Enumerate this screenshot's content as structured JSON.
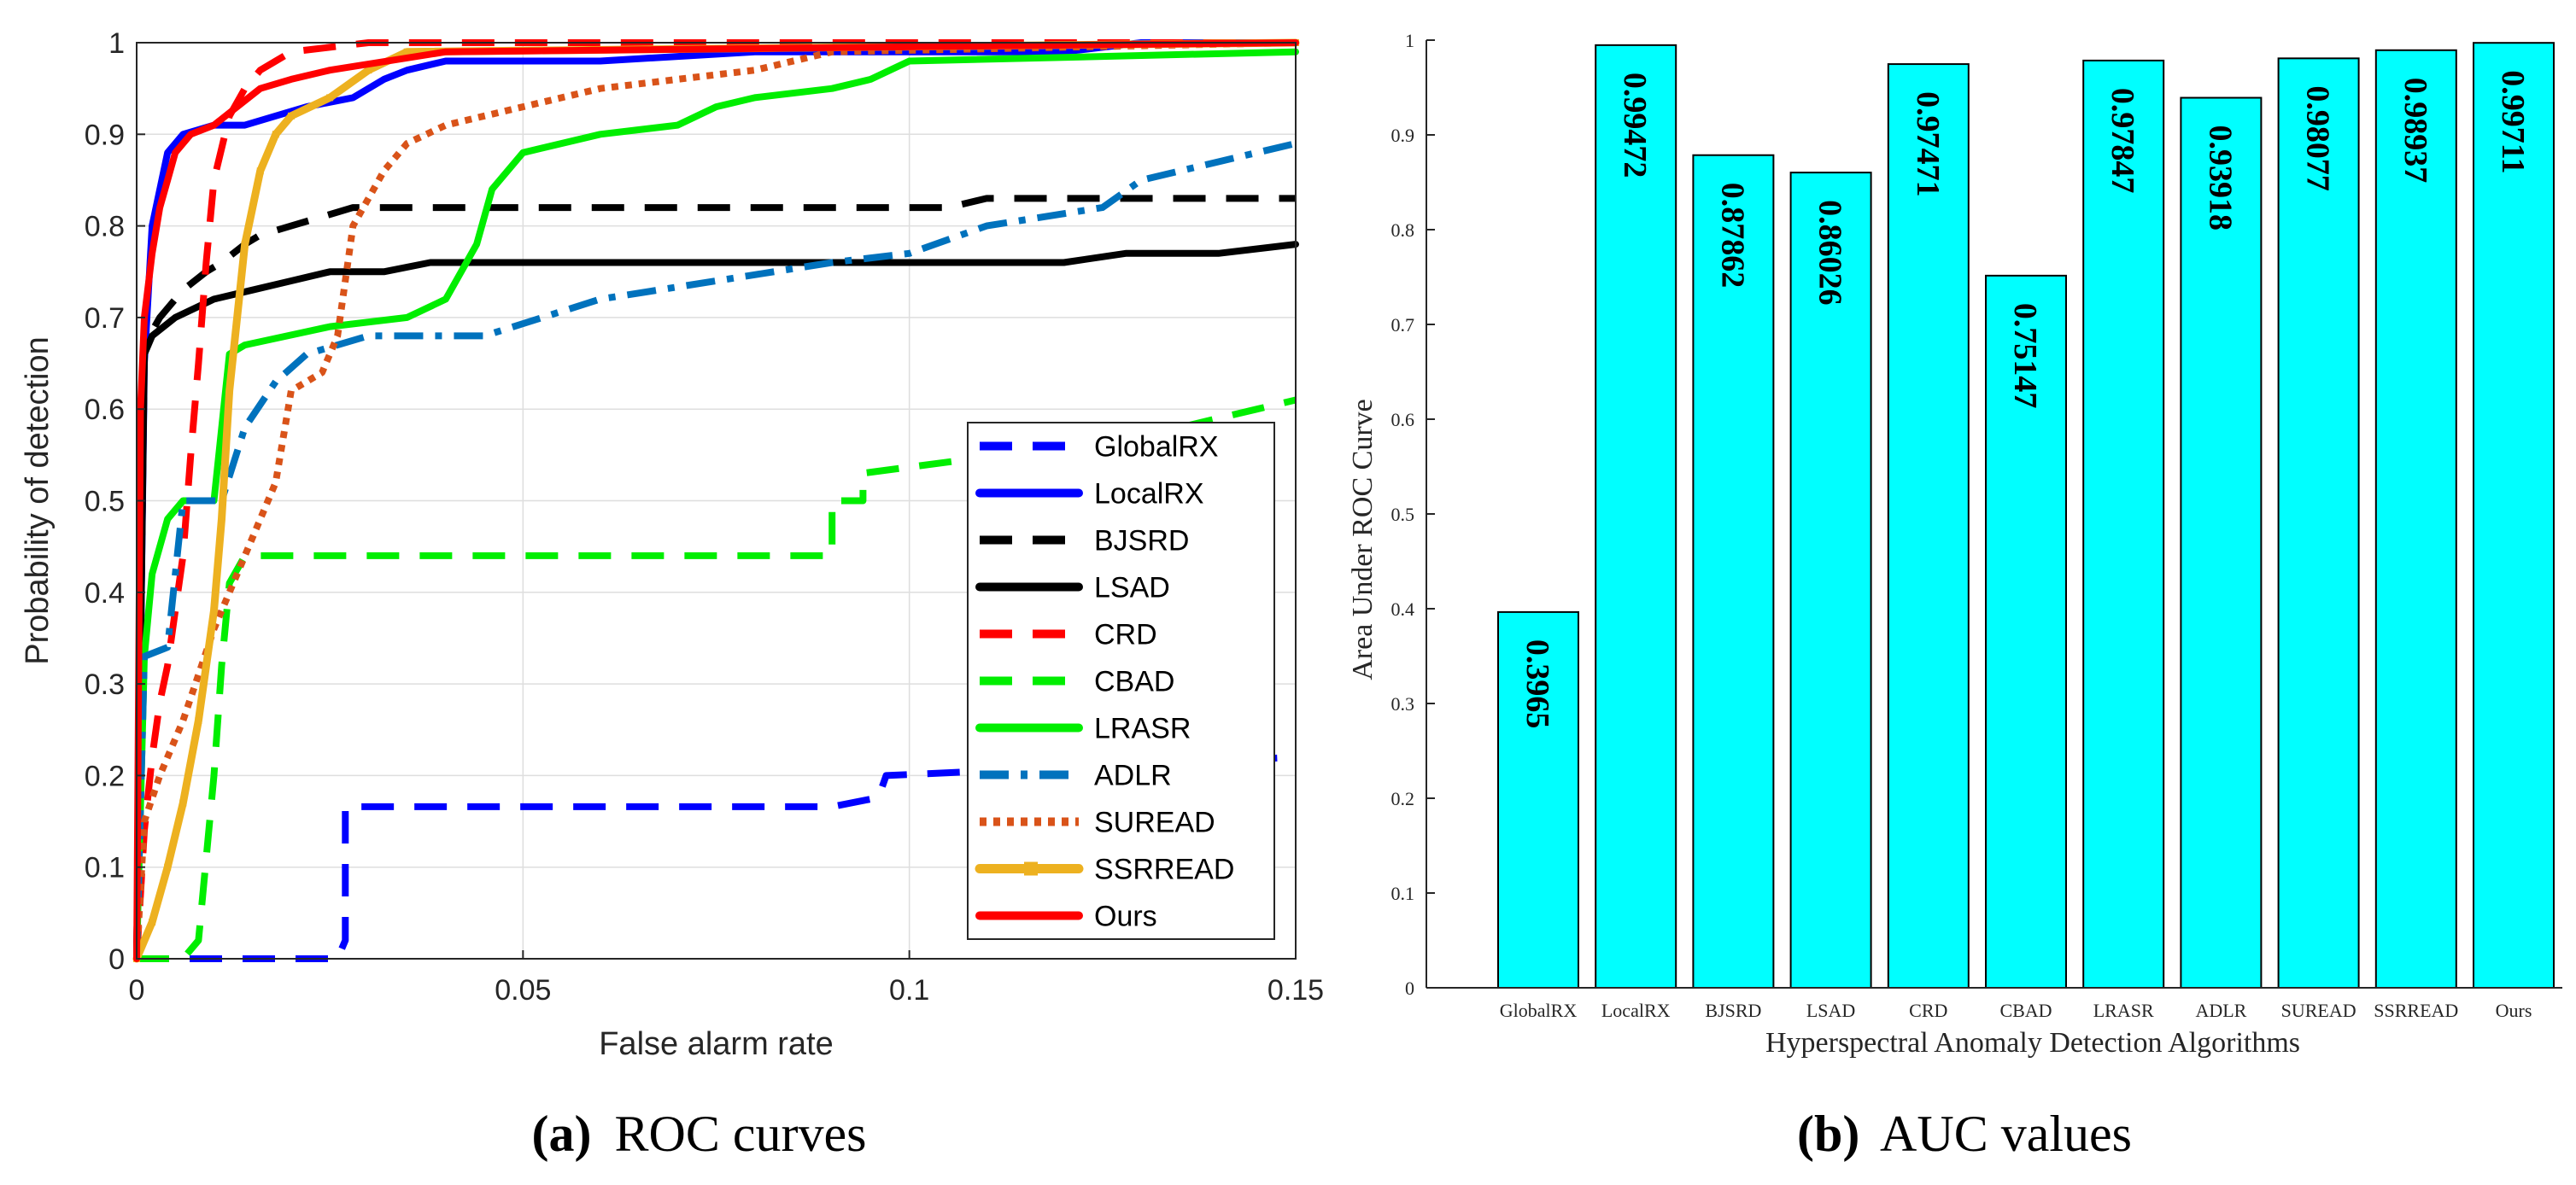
{
  "chart_data": [
    {
      "type": "line",
      "caption_letter": "(a)",
      "caption_text": "ROC curves",
      "xlabel": "False alarm rate",
      "ylabel": "Probability of detection",
      "xlim": [
        0,
        0.15
      ],
      "ylim": [
        0,
        1
      ],
      "xticks": [
        "0",
        "0.05",
        "0.1",
        "0.15"
      ],
      "xtick_values": [
        0,
        0.05,
        0.1,
        0.15
      ],
      "yticks": [
        "0",
        "0.1",
        "0.2",
        "0.3",
        "0.4",
        "0.5",
        "0.6",
        "0.7",
        "0.8",
        "0.9",
        "1"
      ],
      "ytick_values": [
        0,
        0.1,
        0.2,
        0.3,
        0.4,
        0.5,
        0.6,
        0.7,
        0.8,
        0.9,
        1
      ],
      "grid": true,
      "legend_position": "bottom-right",
      "series": [
        {
          "name": "GlobalRX",
          "color": "#0000ff",
          "style": "dash",
          "x": [
            0,
            0.026,
            0.027,
            0.027,
            0.09,
            0.096,
            0.097,
            0.15
          ],
          "y": [
            0,
            0,
            0.02,
            0.166,
            0.166,
            0.176,
            0.2,
            0.22
          ]
        },
        {
          "name": "LocalRX",
          "color": "#0000ff",
          "style": "solid",
          "x": [
            0,
            0.001,
            0.002,
            0.004,
            0.006,
            0.01,
            0.014,
            0.018,
            0.022,
            0.028,
            0.032,
            0.035,
            0.04,
            0.06,
            0.08,
            0.12,
            0.13,
            0.15
          ],
          "y": [
            0,
            0.65,
            0.8,
            0.88,
            0.9,
            0.91,
            0.91,
            0.92,
            0.93,
            0.94,
            0.96,
            0.97,
            0.98,
            0.98,
            0.99,
            0.99,
            1.0,
            1.0
          ]
        },
        {
          "name": "BJSRD",
          "color": "#000000",
          "style": "dash",
          "x": [
            0,
            0.001,
            0.003,
            0.006,
            0.009,
            0.011,
            0.014,
            0.016,
            0.02,
            0.024,
            0.028,
            0.05,
            0.08,
            0.105,
            0.11,
            0.15
          ],
          "y": [
            0,
            0.67,
            0.7,
            0.73,
            0.75,
            0.76,
            0.78,
            0.79,
            0.8,
            0.81,
            0.82,
            0.82,
            0.82,
            0.82,
            0.83,
            0.83
          ]
        },
        {
          "name": "LSAD",
          "color": "#000000",
          "style": "solid",
          "x": [
            0,
            0.001,
            0.002,
            0.005,
            0.01,
            0.015,
            0.02,
            0.025,
            0.032,
            0.038,
            0.06,
            0.08,
            0.1,
            0.12,
            0.128,
            0.14,
            0.15
          ],
          "y": [
            0,
            0.66,
            0.68,
            0.7,
            0.72,
            0.73,
            0.74,
            0.75,
            0.75,
            0.76,
            0.76,
            0.76,
            0.76,
            0.76,
            0.77,
            0.77,
            0.78
          ]
        },
        {
          "name": "CRD",
          "color": "#ff0000",
          "style": "dash",
          "x": [
            0,
            0.001,
            0.002,
            0.003,
            0.004,
            0.005,
            0.006,
            0.007,
            0.008,
            0.009,
            0.01,
            0.012,
            0.014,
            0.016,
            0.018,
            0.02,
            0.03,
            0.15
          ],
          "y": [
            0,
            0.14,
            0.22,
            0.28,
            0.32,
            0.38,
            0.44,
            0.55,
            0.65,
            0.76,
            0.85,
            0.92,
            0.95,
            0.97,
            0.98,
            0.99,
            1.0,
            1.0
          ]
        },
        {
          "name": "CBAD",
          "color": "#00ee00",
          "style": "dash",
          "x": [
            0,
            0.006,
            0.008,
            0.01,
            0.011,
            0.012,
            0.014,
            0.03,
            0.06,
            0.09,
            0.09,
            0.094,
            0.094,
            0.13,
            0.145,
            0.15
          ],
          "y": [
            0,
            0,
            0.02,
            0.2,
            0.32,
            0.41,
            0.44,
            0.44,
            0.44,
            0.44,
            0.5,
            0.5,
            0.53,
            0.57,
            0.6,
            0.61
          ]
        },
        {
          "name": "LRASR",
          "color": "#00ee00",
          "style": "solid",
          "x": [
            0,
            0.001,
            0.002,
            0.004,
            0.006,
            0.01,
            0.012,
            0.014,
            0.025,
            0.035,
            0.04,
            0.044,
            0.046,
            0.05,
            0.06,
            0.07,
            0.075,
            0.08,
            0.09,
            0.095,
            0.1,
            0.15
          ],
          "y": [
            0,
            0.33,
            0.42,
            0.48,
            0.5,
            0.5,
            0.66,
            0.67,
            0.69,
            0.7,
            0.72,
            0.78,
            0.84,
            0.88,
            0.9,
            0.91,
            0.93,
            0.94,
            0.95,
            0.96,
            0.98,
            0.99
          ]
        },
        {
          "name": "ADLR",
          "color": "#0072bd",
          "style": "dashdot",
          "x": [
            0,
            0.001,
            0.004,
            0.006,
            0.011,
            0.014,
            0.018,
            0.022,
            0.03,
            0.045,
            0.06,
            0.075,
            0.09,
            0.1,
            0.11,
            0.125,
            0.13,
            0.14,
            0.15
          ],
          "y": [
            0,
            0.33,
            0.34,
            0.5,
            0.5,
            0.58,
            0.63,
            0.66,
            0.68,
            0.68,
            0.72,
            0.74,
            0.76,
            0.77,
            0.8,
            0.82,
            0.85,
            0.87,
            0.89
          ]
        },
        {
          "name": "SUREAD",
          "color": "#d95319",
          "style": "dot",
          "x": [
            0,
            0.001,
            0.003,
            0.006,
            0.01,
            0.014,
            0.018,
            0.02,
            0.024,
            0.026,
            0.028,
            0.032,
            0.035,
            0.04,
            0.05,
            0.06,
            0.07,
            0.08,
            0.09,
            0.15
          ],
          "y": [
            0,
            0.15,
            0.2,
            0.26,
            0.36,
            0.44,
            0.52,
            0.62,
            0.64,
            0.68,
            0.8,
            0.86,
            0.89,
            0.91,
            0.93,
            0.95,
            0.96,
            0.97,
            0.99,
            1.0
          ]
        },
        {
          "name": "SSRREAD",
          "color": "#edb120",
          "style": "solid-marker",
          "x": [
            0,
            0.002,
            0.004,
            0.006,
            0.008,
            0.01,
            0.011,
            0.012,
            0.014,
            0.016,
            0.018,
            0.02,
            0.025,
            0.03,
            0.035,
            0.15
          ],
          "y": [
            0,
            0.04,
            0.1,
            0.17,
            0.26,
            0.38,
            0.48,
            0.62,
            0.78,
            0.86,
            0.9,
            0.92,
            0.94,
            0.97,
            0.99,
            1.0
          ]
        },
        {
          "name": "Ours",
          "color": "#ff0000",
          "style": "solid",
          "x": [
            0,
            0.0005,
            0.001,
            0.002,
            0.003,
            0.004,
            0.005,
            0.007,
            0.01,
            0.013,
            0.016,
            0.02,
            0.025,
            0.04,
            0.15
          ],
          "y": [
            0,
            0.6,
            0.7,
            0.77,
            0.82,
            0.85,
            0.88,
            0.9,
            0.91,
            0.93,
            0.95,
            0.96,
            0.97,
            0.99,
            1.0
          ]
        }
      ]
    },
    {
      "type": "bar",
      "caption_letter": "(b)",
      "caption_text": "AUC values",
      "xlabel": "Hyperspectral Anomaly Detection Algorithms",
      "ylabel": "Area Under ROC Curve",
      "ylim": [
        0,
        1
      ],
      "yticks": [
        "0",
        "0.1",
        "0.2",
        "0.3",
        "0.4",
        "0.5",
        "0.6",
        "0.7",
        "0.8",
        "0.9",
        "1"
      ],
      "ytick_values": [
        0,
        0.1,
        0.2,
        0.3,
        0.4,
        0.5,
        0.6,
        0.7,
        0.8,
        0.9,
        1
      ],
      "bar_color": "#00ffff",
      "categories": [
        "GlobalRX",
        "LocalRX",
        "BJSRD",
        "LSAD",
        "CRD",
        "CBAD",
        "LRASR",
        "ADLR",
        "SUREAD",
        "SSRREAD",
        "Ours"
      ],
      "values": [
        0.3965,
        0.99472,
        0.87862,
        0.86026,
        0.97471,
        0.75147,
        0.97847,
        0.93918,
        0.98077,
        0.98937,
        0.99711
      ],
      "data_labels": [
        "0.3965",
        "0.99472",
        "0.87862",
        "0.86026",
        "0.97471",
        "0.75147",
        "0.97847",
        "0.93918",
        "0.98077",
        "0.98937",
        "0.99711"
      ]
    }
  ]
}
